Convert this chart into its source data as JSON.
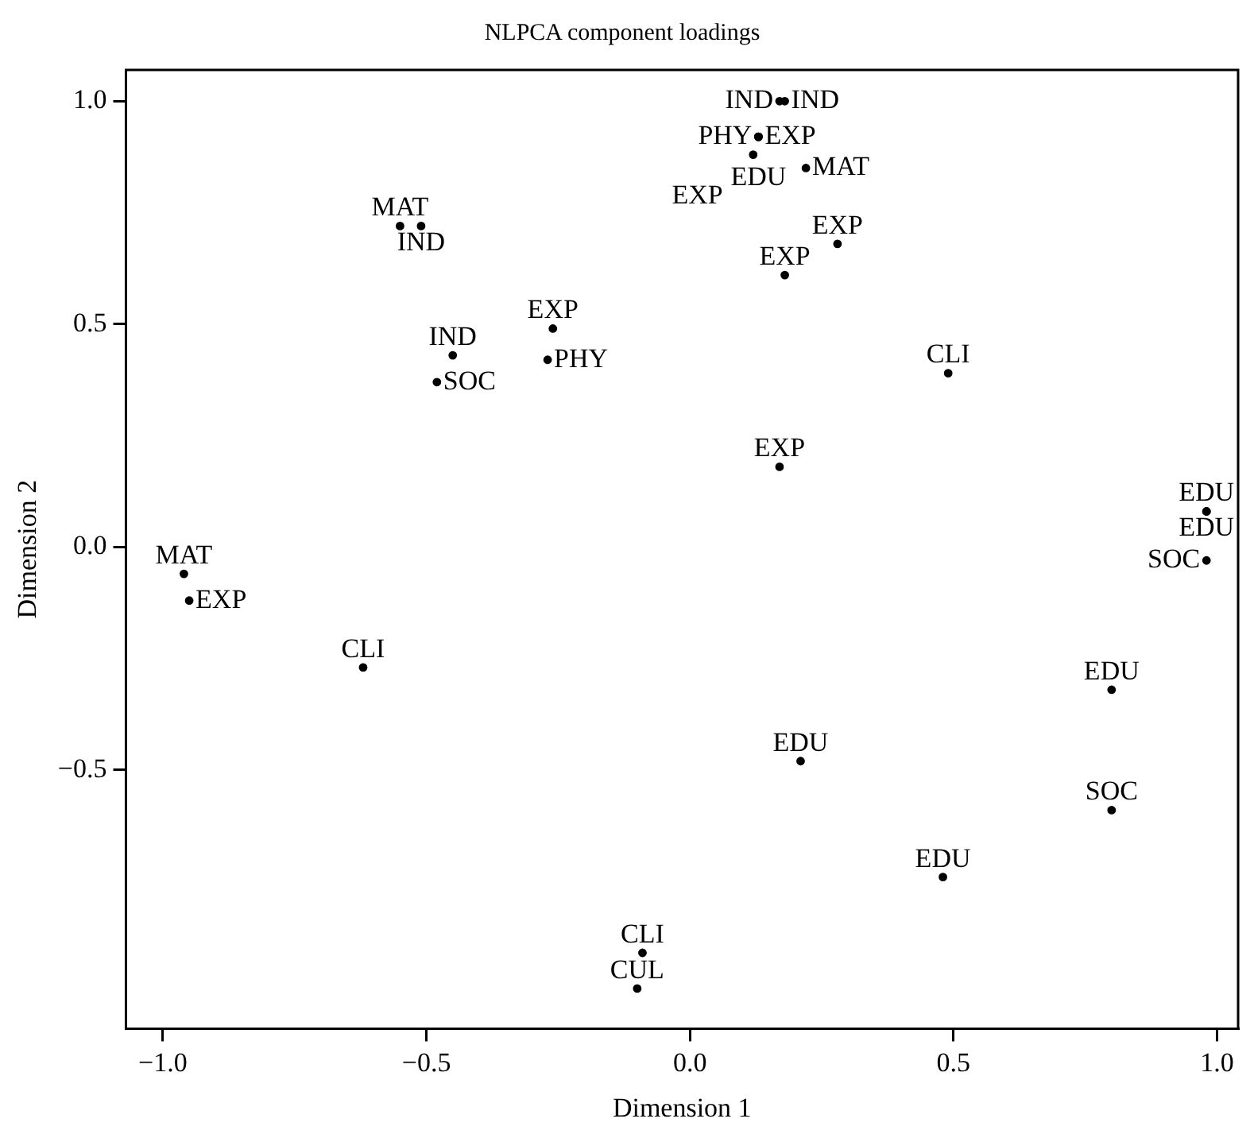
{
  "chart_data": {
    "type": "scatter",
    "title": "NLPCA component loadings",
    "xlabel": "Dimension 1",
    "ylabel": "Dimension 2",
    "xlim": [
      -1.07,
      1.04
    ],
    "ylim": [
      -1.08,
      1.07
    ],
    "xticks": [
      {
        "value": -1,
        "label": "−1.0"
      },
      {
        "value": -0.5,
        "label": "−0.5"
      },
      {
        "value": 0,
        "label": "0.0"
      },
      {
        "value": 0.5,
        "label": "0.5"
      },
      {
        "value": 1,
        "label": "1.0"
      }
    ],
    "yticks": [
      {
        "value": -0.5,
        "label": "−0.5"
      },
      {
        "value": 0,
        "label": "0.0"
      },
      {
        "value": 0.5,
        "label": "0.5"
      },
      {
        "value": 1,
        "label": "1.0"
      }
    ],
    "grid": false,
    "legend": false,
    "marker": "circle",
    "series": [
      {
        "color": "#000000",
        "x": [
          0.17,
          0.18,
          0.13,
          0.13,
          0.13,
          0.12,
          0.22,
          -0.55,
          -0.51,
          0.28,
          0.18,
          -0.26,
          -0.27,
          -0.45,
          -0.48,
          0.49,
          0.17,
          0.98,
          0.98,
          0.98,
          -0.96,
          -0.95,
          -0.62,
          0.8,
          0.21,
          0.8,
          0.48,
          -0.09,
          -0.1
        ],
        "values": [
          1.0,
          1.0,
          0.92,
          0.92,
          0.92,
          0.88,
          0.85,
          0.72,
          0.72,
          0.68,
          0.61,
          0.49,
          0.42,
          0.43,
          0.37,
          0.39,
          0.18,
          0.08,
          0.08,
          -0.03,
          -0.06,
          -0.12,
          -0.27,
          -0.32,
          -0.48,
          -0.59,
          -0.74,
          -0.91,
          -0.99
        ],
        "value_labels": [
          "IND",
          "IND",
          "EXP",
          "PHY",
          "EDU",
          "EXP",
          "MAT",
          "MAT",
          "IND",
          "EXP",
          "EXP",
          "EXP",
          "PHY",
          "IND",
          "SOC",
          "CLI",
          "EXP",
          "EDU",
          "EDU",
          "SOC",
          "MAT",
          "EXP",
          "CLI",
          "EDU",
          "EDU",
          "SOC",
          "EDU",
          "CLI",
          "CUL"
        ]
      }
    ]
  }
}
